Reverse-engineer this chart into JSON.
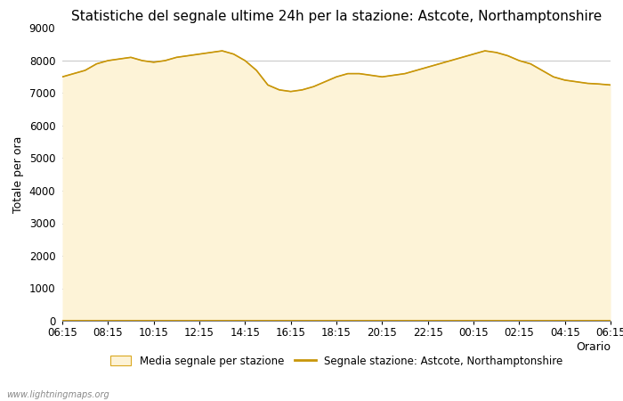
{
  "title": "Statistiche del segnale ultime 24h per la stazione: Astcote, Northamptonshire",
  "xlabel": "Orario",
  "ylabel": "Totale per ora",
  "ylim": [
    0,
    9000
  ],
  "yticks": [
    0,
    1000,
    2000,
    3000,
    4000,
    5000,
    6000,
    7000,
    8000,
    9000
  ],
  "xtick_labels": [
    "06:15",
    "08:15",
    "10:15",
    "12:15",
    "14:15",
    "16:15",
    "18:15",
    "20:15",
    "22:15",
    "00:15",
    "02:15",
    "04:15",
    "06:15"
  ],
  "fill_color": "#fdf3d7",
  "fill_edge_color": "#daa820",
  "line_color": "#c8960a",
  "background_color": "#ffffff",
  "grid_color": "#bbbbbb",
  "watermark": "www.lightningmaps.org",
  "legend_fill_label": "Media segnale per stazione",
  "legend_line_label": "Segnale stazione: Astcote, Northamptonshire",
  "title_fontsize": 11,
  "label_fontsize": 9,
  "tick_fontsize": 8.5,
  "x_values": [
    0,
    1,
    2,
    3,
    4,
    5,
    6,
    7,
    8,
    9,
    10,
    11,
    12,
    13,
    14,
    15,
    16,
    17,
    18,
    19,
    20,
    21,
    22,
    23,
    24,
    25,
    26,
    27,
    28,
    29,
    30,
    31,
    32,
    33,
    34,
    35,
    36,
    37,
    38,
    39,
    40,
    41,
    42,
    43,
    44,
    45,
    46,
    47,
    48
  ],
  "y_values": [
    7500,
    7600,
    7700,
    7900,
    8000,
    8050,
    8100,
    8000,
    7950,
    8000,
    8100,
    8150,
    8200,
    8250,
    8300,
    8200,
    8000,
    7700,
    7250,
    7100,
    7050,
    7100,
    7200,
    7350,
    7500,
    7600,
    7600,
    7550,
    7500,
    7550,
    7600,
    7700,
    7800,
    7900,
    8000,
    8100,
    8200,
    8300,
    8250,
    8150,
    8000,
    7900,
    7700,
    7500,
    7400,
    7350,
    7300,
    7280,
    7250
  ]
}
